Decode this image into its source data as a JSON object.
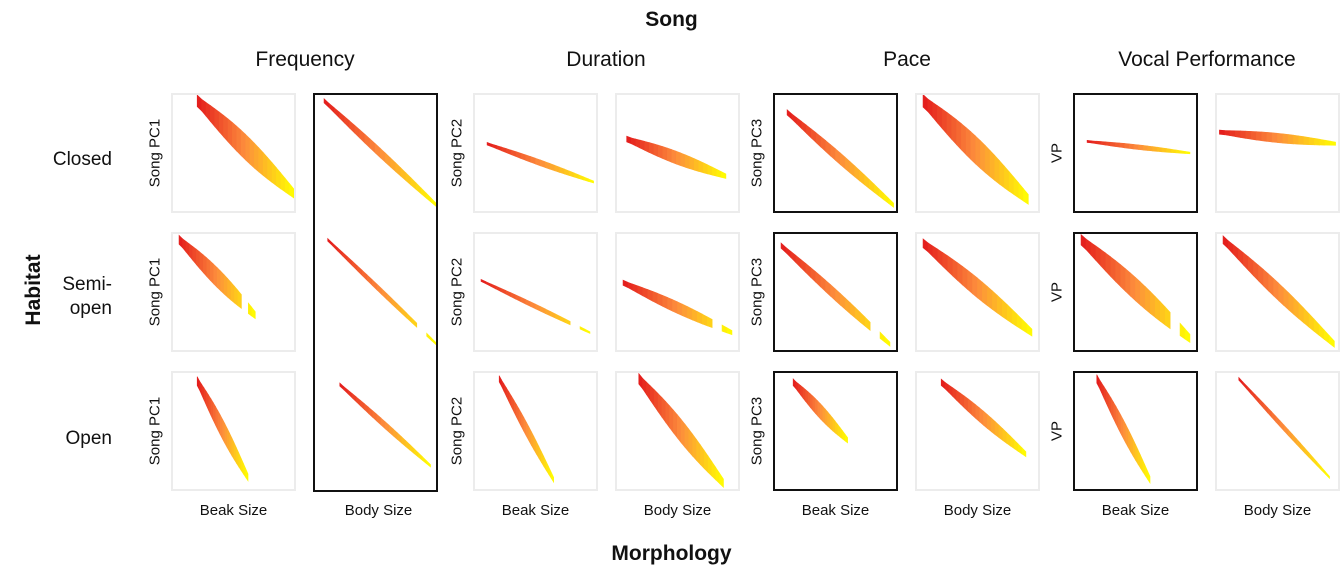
{
  "chart_data": {
    "type": "heatmap",
    "title": "Song",
    "xlabel": "Morphology",
    "ylabel": "Habitat",
    "song_groups": [
      "Frequency",
      "Duration",
      "Pace",
      "Vocal Performance"
    ],
    "habitats": [
      "Closed",
      "Semi-\nopen",
      "Open"
    ],
    "morphology_axes": [
      "Beak Size",
      "Body Size"
    ],
    "y_axis_labels": {
      "Frequency": [
        "Song PC1",
        "Song PC1",
        "Song PC1"
      ],
      "Duration": [
        "Song PC2",
        "Song PC2",
        "Song PC2"
      ],
      "Pace": [
        "Song PC3",
        "Song PC3",
        "Song PC3"
      ],
      "Vocal Performance": [
        "VP",
        "VP",
        "VP"
      ]
    },
    "color_scale": [
      "#e31a1c",
      "#fd8d3c",
      "#ffff00"
    ],
    "highlighted": {
      "Frequency-Body Size": [
        true,
        true,
        true
      ],
      "Pace-Beak Size": [
        true,
        true,
        true
      ],
      "Vocal Performance-Beak Size": [
        true,
        true,
        true
      ]
    },
    "panels": [
      {
        "group": "Frequency",
        "morph": "Beak Size",
        "habitat": "Closed",
        "x": [
          0.2,
          1
        ],
        "y": [
          0.95,
          0.15
        ],
        "width": 0.22,
        "segments": 1
      },
      {
        "group": "Frequency",
        "morph": "Body Size",
        "habitat": "Closed",
        "x": [
          0.05,
          0.98
        ],
        "y": [
          0.95,
          0.05
        ],
        "width": 0.08,
        "segments": 1
      },
      {
        "group": "Duration",
        "morph": "Beak Size",
        "habitat": "Closed",
        "x": [
          0.1,
          0.98
        ],
        "y": [
          0.58,
          0.25
        ],
        "width": 0.05,
        "segments": 1
      },
      {
        "group": "Duration",
        "morph": "Body Size",
        "habitat": "Closed",
        "x": [
          0.08,
          0.9
        ],
        "y": [
          0.62,
          0.3
        ],
        "width": 0.11,
        "segments": 1
      },
      {
        "group": "Pace",
        "morph": "Beak Size",
        "habitat": "Closed",
        "x": [
          0.1,
          0.98
        ],
        "y": [
          0.85,
          0.05
        ],
        "width": 0.1,
        "segments": 1
      },
      {
        "group": "Pace",
        "morph": "Body Size",
        "habitat": "Closed",
        "x": [
          0.05,
          0.92
        ],
        "y": [
          0.95,
          0.1
        ],
        "width": 0.24,
        "segments": 1
      },
      {
        "group": "Vocal Performance",
        "morph": "Beak Size",
        "habitat": "Closed",
        "x": [
          0.1,
          0.95
        ],
        "y": [
          0.6,
          0.5
        ],
        "width": 0.04,
        "segments": 1
      },
      {
        "group": "Vocal Performance",
        "morph": "Body Size",
        "habitat": "Closed",
        "x": [
          0.02,
          0.98
        ],
        "y": [
          0.68,
          0.58
        ],
        "width": 0.08,
        "segments": 1
      },
      {
        "group": "Frequency",
        "morph": "Beak Size",
        "habitat": "Semi-open",
        "x": [
          0.05,
          0.68
        ],
        "y": [
          0.95,
          0.3
        ],
        "width": 0.17,
        "segments": 2
      },
      {
        "group": "Frequency",
        "morph": "Body Size",
        "habitat": "Semi-open",
        "x": [
          0.08,
          0.98
        ],
        "y": [
          0.95,
          0.05
        ],
        "width": 0.05,
        "segments": 2
      },
      {
        "group": "Duration",
        "morph": "Beak Size",
        "habitat": "Semi-open",
        "x": [
          0.05,
          0.95
        ],
        "y": [
          0.6,
          0.15
        ],
        "width": 0.04,
        "segments": 2
      },
      {
        "group": "Duration",
        "morph": "Body Size",
        "habitat": "Semi-open",
        "x": [
          0.05,
          0.95
        ],
        "y": [
          0.58,
          0.15
        ],
        "width": 0.1,
        "segments": 2
      },
      {
        "group": "Pace",
        "morph": "Beak Size",
        "habitat": "Semi-open",
        "x": [
          0.05,
          0.95
        ],
        "y": [
          0.9,
          0.05
        ],
        "width": 0.1,
        "segments": 2
      },
      {
        "group": "Pace",
        "morph": "Body Size",
        "habitat": "Semi-open",
        "x": [
          0.05,
          0.95
        ],
        "y": [
          0.92,
          0.15
        ],
        "width": 0.17,
        "segments": 1
      },
      {
        "group": "Vocal Performance",
        "morph": "Beak Size",
        "habitat": "Semi-open",
        "x": [
          0.05,
          0.95
        ],
        "y": [
          0.95,
          0.1
        ],
        "width": 0.2,
        "segments": 2
      },
      {
        "group": "Vocal Performance",
        "morph": "Body Size",
        "habitat": "Semi-open",
        "x": [
          0.05,
          0.97
        ],
        "y": [
          0.95,
          0.05
        ],
        "width": 0.15,
        "segments": 1
      },
      {
        "group": "Frequency",
        "morph": "Beak Size",
        "habitat": "Open",
        "x": [
          0.2,
          0.62
        ],
        "y": [
          0.93,
          0.1
        ],
        "width": 0.17,
        "segments": 1
      },
      {
        "group": "Frequency",
        "morph": "Body Size",
        "habitat": "Open",
        "x": [
          0.18,
          0.93
        ],
        "y": [
          0.9,
          0.2
        ],
        "width": 0.06,
        "segments": 1
      },
      {
        "group": "Duration",
        "morph": "Beak Size",
        "habitat": "Open",
        "x": [
          0.2,
          0.65
        ],
        "y": [
          0.95,
          0.08
        ],
        "width": 0.12,
        "segments": 1
      },
      {
        "group": "Duration",
        "morph": "Body Size",
        "habitat": "Open",
        "x": [
          0.18,
          0.88
        ],
        "y": [
          0.95,
          0.05
        ],
        "width": 0.2,
        "segments": 1
      },
      {
        "group": "Pace",
        "morph": "Beak Size",
        "habitat": "Open",
        "x": [
          0.15,
          0.6
        ],
        "y": [
          0.92,
          0.42
        ],
        "width": 0.13,
        "segments": 1
      },
      {
        "group": "Pace",
        "morph": "Body Size",
        "habitat": "Open",
        "x": [
          0.2,
          0.9
        ],
        "y": [
          0.92,
          0.3
        ],
        "width": 0.12,
        "segments": 1
      },
      {
        "group": "Vocal Performance",
        "morph": "Beak Size",
        "habitat": "Open",
        "x": [
          0.18,
          0.62
        ],
        "y": [
          0.95,
          0.08
        ],
        "width": 0.16,
        "segments": 1
      },
      {
        "group": "Vocal Performance",
        "morph": "Body Size",
        "habitat": "Open",
        "x": [
          0.18,
          0.93
        ],
        "y": [
          0.95,
          0.1
        ],
        "width": 0.05,
        "segments": 1
      }
    ]
  }
}
